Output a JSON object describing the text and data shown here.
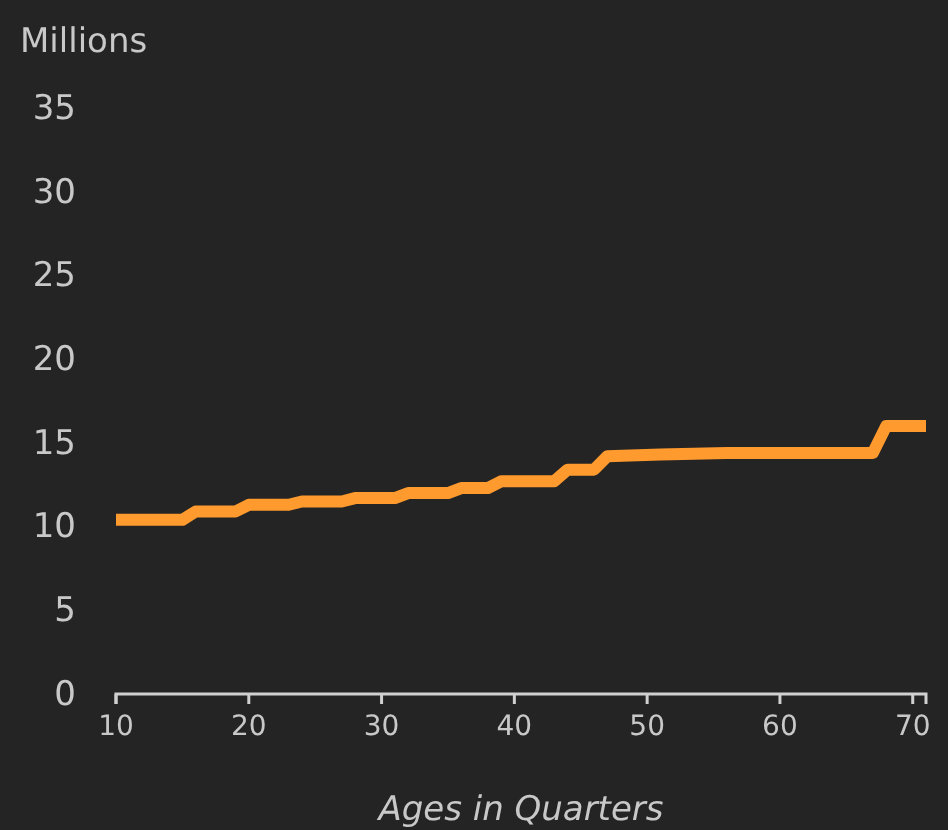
{
  "chart_data": {
    "type": "line",
    "ylabel": "Millions",
    "xlabel": "Ages in Quarters",
    "xlim": [
      10,
      71
    ],
    "xticks": [
      10,
      20,
      30,
      40,
      50,
      60,
      70
    ],
    "ylim": [
      0,
      35
    ],
    "yticks": [
      0,
      5,
      10,
      15,
      20,
      25,
      30,
      35
    ],
    "grid": false,
    "marker": "none",
    "line_style": "solid",
    "series": [
      {
        "color": "#ff9a2e",
        "x": [
          10,
          15,
          16,
          19,
          20,
          23,
          24,
          27,
          28,
          31,
          32,
          35,
          36,
          38,
          39,
          43,
          44,
          46,
          47,
          51,
          56,
          67,
          68,
          71
        ],
        "values": [
          10.4,
          10.4,
          10.9,
          10.9,
          11.3,
          11.3,
          11.5,
          11.5,
          11.7,
          11.7,
          12.0,
          12.0,
          12.3,
          12.3,
          12.7,
          12.7,
          13.4,
          13.4,
          14.2,
          14.3,
          14.4,
          14.4,
          16.0,
          16.0
        ]
      }
    ]
  }
}
